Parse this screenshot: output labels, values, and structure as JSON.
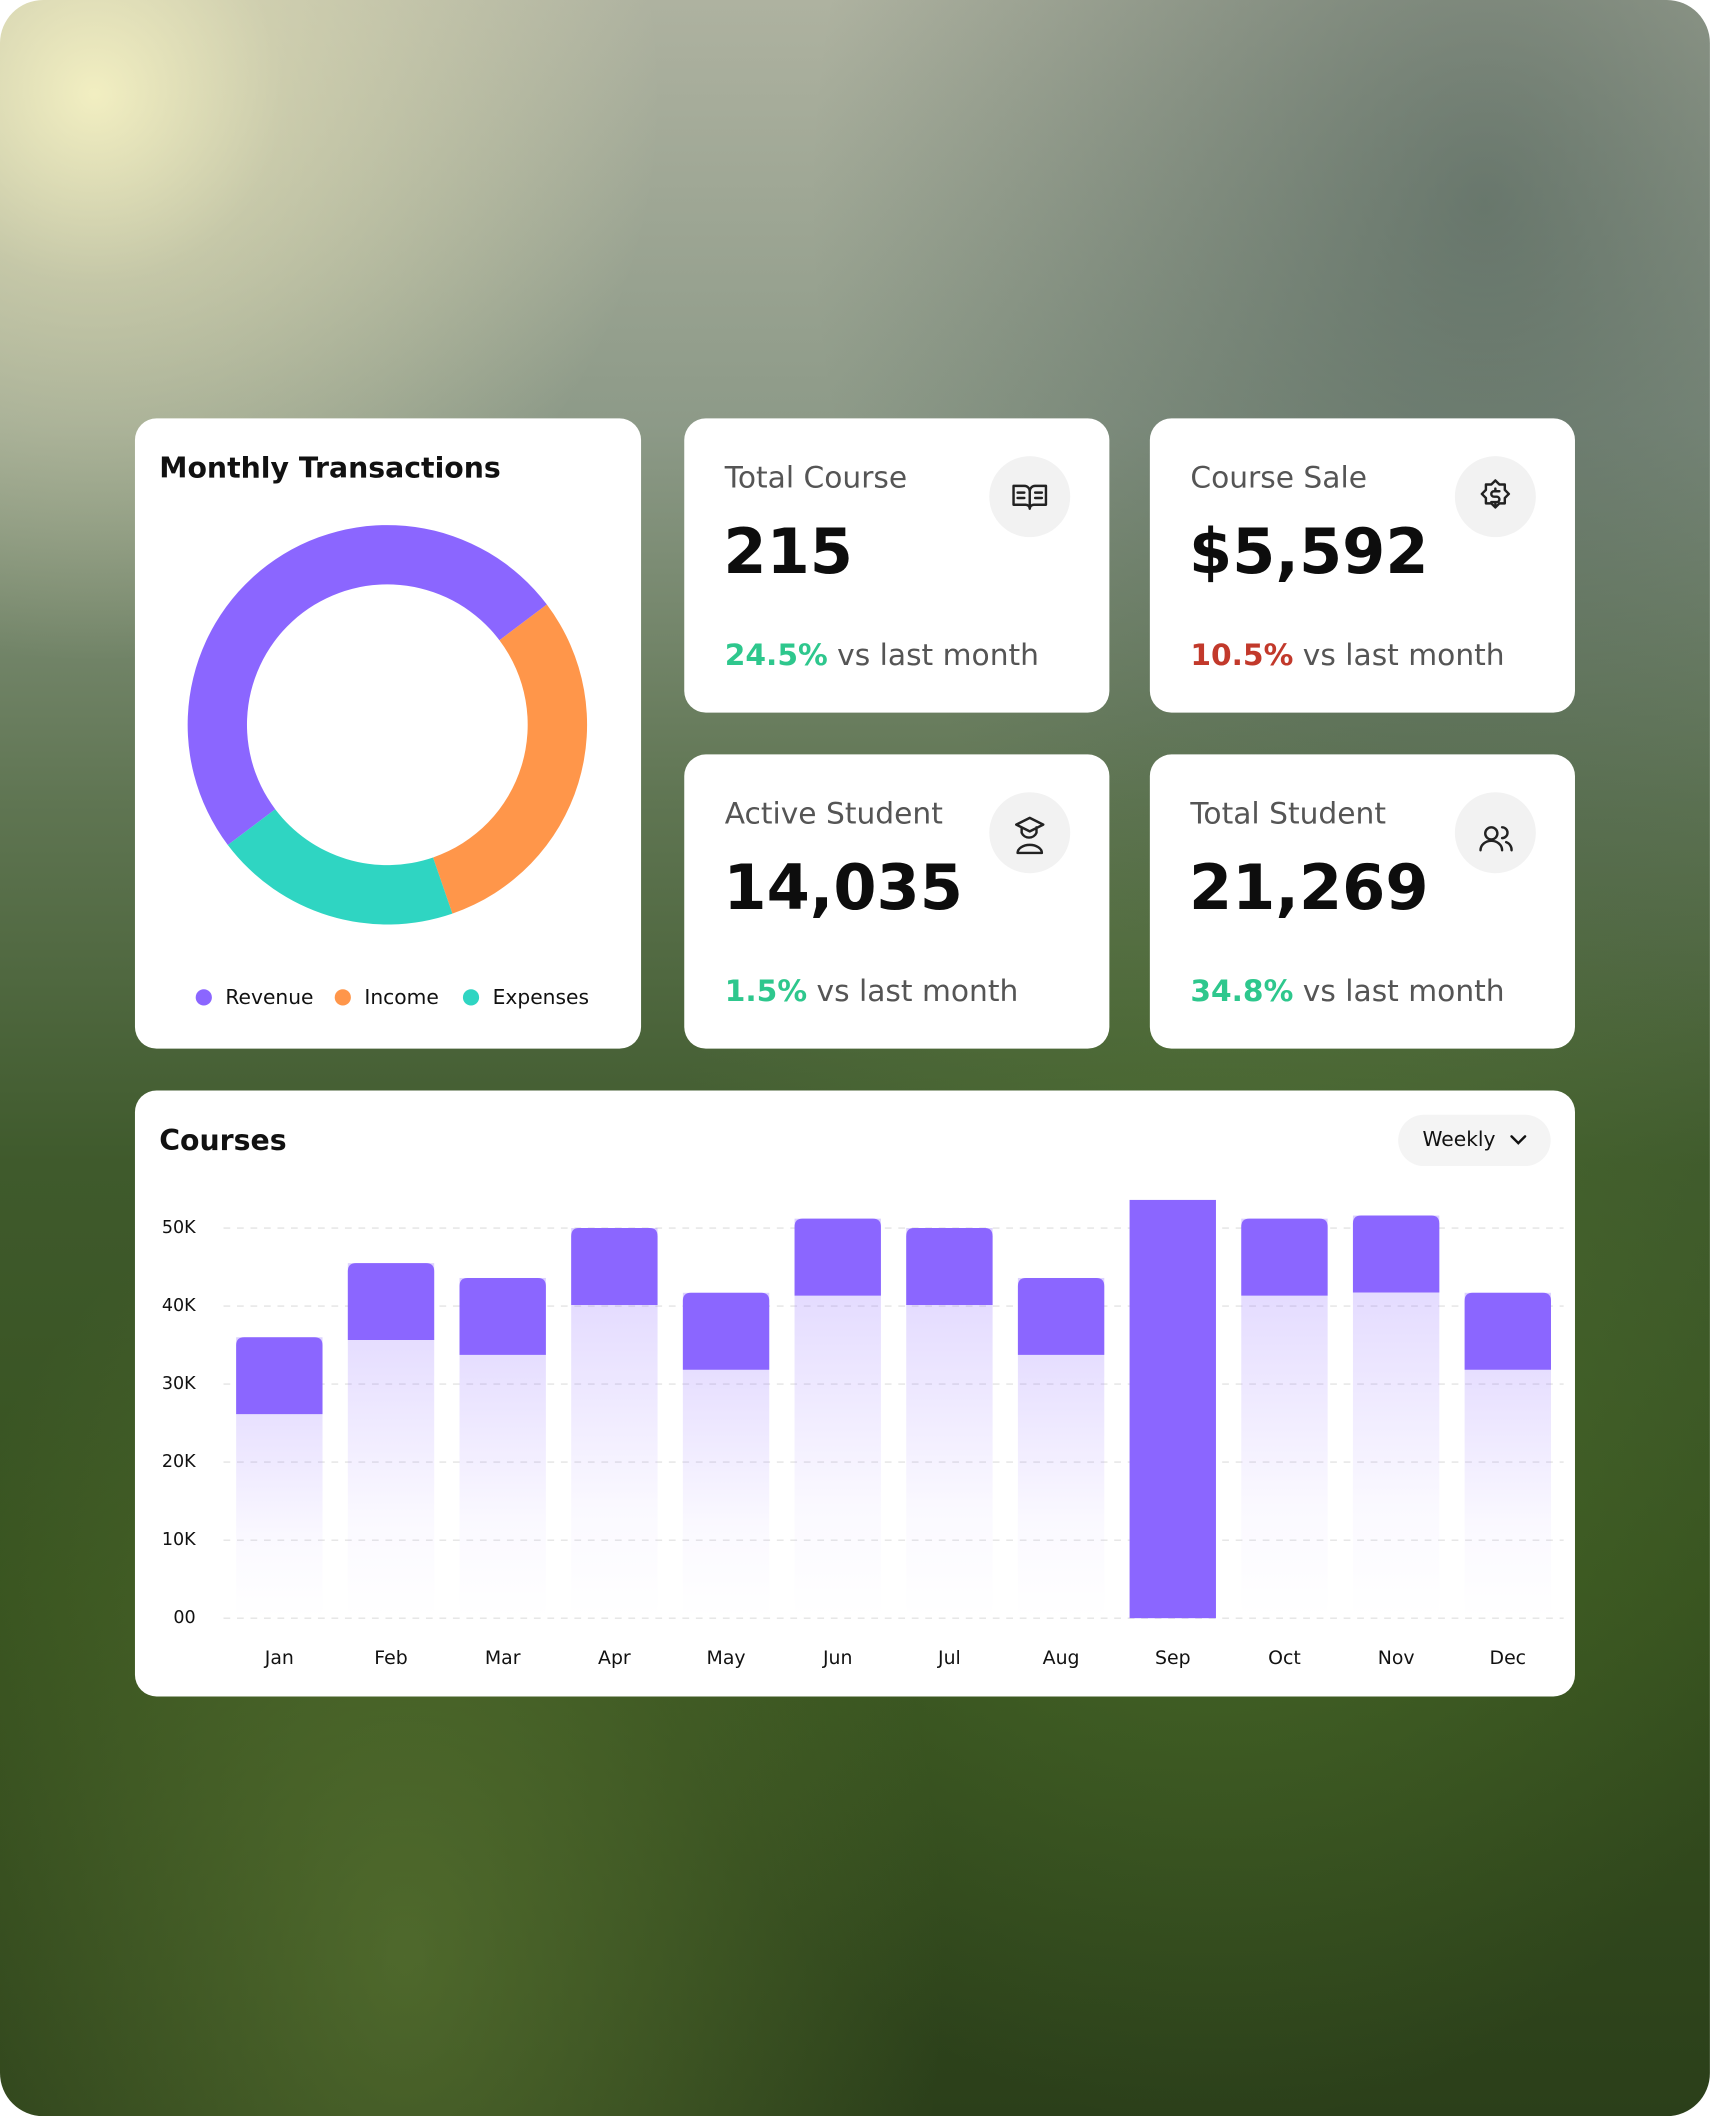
{
  "stats": [
    {
      "label": "Total Course",
      "value": "215",
      "change": "24.5%",
      "change_color": "#2ec78d",
      "note": "vs last month"
    },
    {
      "label": "Course Sale",
      "value": "$5,592",
      "change": "10.5%",
      "change_color": "#c2392b",
      "note": "vs last month"
    },
    {
      "label": "Active Student",
      "value": "14,035",
      "change": "1.5%",
      "change_color": "#2ec78d",
      "note": "vs last month"
    },
    {
      "label": "Total Student",
      "value": "21,269",
      "change": "34.8%",
      "change_color": "#2ec78d",
      "note": "vs last month"
    }
  ],
  "controls": {
    "period": "Weekly"
  },
  "chart_data": [
    {
      "type": "donut",
      "title": "Monthly Transactions",
      "categories": [
        "Revenue",
        "Income",
        "Expenses"
      ],
      "values": [
        50,
        30,
        20
      ],
      "colors": [
        "#8b66ff",
        "#ff964a",
        "#2fd5c2"
      ],
      "start_angle": 233
    },
    {
      "type": "bar",
      "title": "Courses",
      "categories": [
        "Jan",
        "Feb",
        "Mar",
        "Apr",
        "May",
        "Jun",
        "Jul",
        "Aug",
        "Sep",
        "Oct",
        "Nov",
        "Dec"
      ],
      "values": [
        36000,
        45500,
        43600,
        50000,
        41700,
        51200,
        50000,
        43600,
        53600,
        51200,
        51600,
        41700
      ],
      "color": "#8b66ff",
      "highlight": 8,
      "ylim": [
        0,
        55000
      ],
      "yticks": [
        {
          "value": 0,
          "label": "00"
        },
        {
          "value": 10000,
          "label": "10K"
        },
        {
          "value": 20000,
          "label": "20K"
        },
        {
          "value": 30000,
          "label": "30K"
        },
        {
          "value": 40000,
          "label": "40K"
        },
        {
          "value": 50000,
          "label": "50K"
        }
      ],
      "grid": true
    }
  ]
}
